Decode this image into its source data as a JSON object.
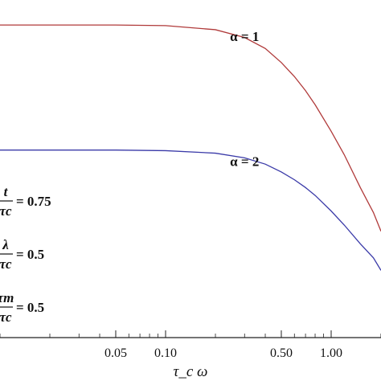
{
  "chart_data": {
    "type": "line",
    "xscale": "log",
    "xlabel": "τ_c ω",
    "x_ticks": [
      {
        "value": 0.05,
        "label": "0.05"
      },
      {
        "value": 0.1,
        "label": "0.10"
      },
      {
        "value": 0.5,
        "label": "0.50"
      },
      {
        "value": 1.0,
        "label": "1.00"
      }
    ],
    "xlim": [
      0.01,
      2.0
    ],
    "series": [
      {
        "name": "α = 1",
        "color": "#b03a3a",
        "x": [
          0.01,
          0.05,
          0.1,
          0.2,
          0.3,
          0.4,
          0.5,
          0.6,
          0.7,
          0.8,
          1.0,
          1.2,
          1.5,
          1.8,
          2.0
        ],
        "y": [
          1.0,
          1.0,
          0.998,
          0.985,
          0.96,
          0.925,
          0.88,
          0.835,
          0.79,
          0.745,
          0.66,
          0.585,
          0.48,
          0.4,
          0.34
        ]
      },
      {
        "name": "α = 2",
        "color": "#3a3aa8",
        "x": [
          0.01,
          0.05,
          0.1,
          0.2,
          0.3,
          0.4,
          0.5,
          0.6,
          0.7,
          0.8,
          1.0,
          1.2,
          1.5,
          1.8,
          2.0
        ],
        "y": [
          0.6,
          0.6,
          0.598,
          0.59,
          0.575,
          0.555,
          0.53,
          0.505,
          0.48,
          0.455,
          0.405,
          0.36,
          0.3,
          0.255,
          0.215
        ]
      }
    ],
    "ylim": [
      0,
      1.08
    ],
    "annotations": [
      {
        "target": "α = 1",
        "text": "α = 1"
      },
      {
        "target": "α = 2",
        "text": "α = 2"
      }
    ],
    "parameters": [
      {
        "numerator": "t",
        "denominator": "τc",
        "value": "= 0.75"
      },
      {
        "numerator": "λ",
        "denominator": "τc",
        "value": "= 0.5"
      },
      {
        "numerator": "τm",
        "denominator": "τc",
        "value": "= 0.5"
      }
    ]
  }
}
